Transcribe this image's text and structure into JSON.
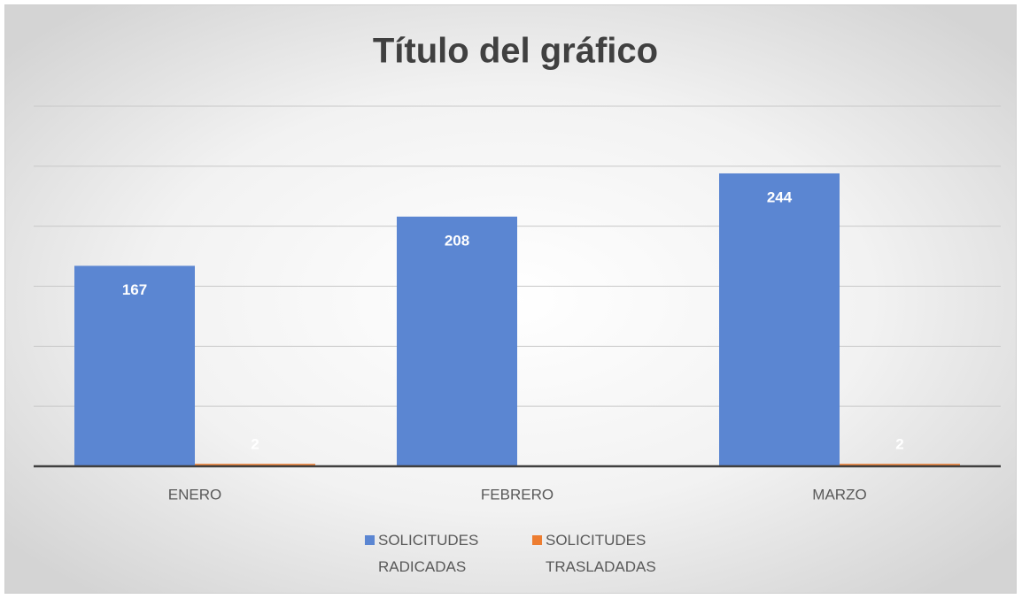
{
  "chart_data": {
    "type": "bar",
    "title": "Título del gráfico",
    "categories": [
      "ENERO",
      "FEBRERO",
      "MARZO"
    ],
    "series": [
      {
        "name": "SOLICITUDES RADICADAS",
        "color": "#5b86d2",
        "values": [
          167,
          208,
          244
        ]
      },
      {
        "name": "SOLICITUDES TRASLADADAS",
        "color": "#ed7d31",
        "values": [
          2,
          null,
          2
        ]
      }
    ],
    "ylim": [
      0,
      300
    ],
    "yticks": [
      0,
      50,
      100,
      150,
      200,
      250,
      300
    ],
    "grid": true,
    "legend": "bottom"
  }
}
